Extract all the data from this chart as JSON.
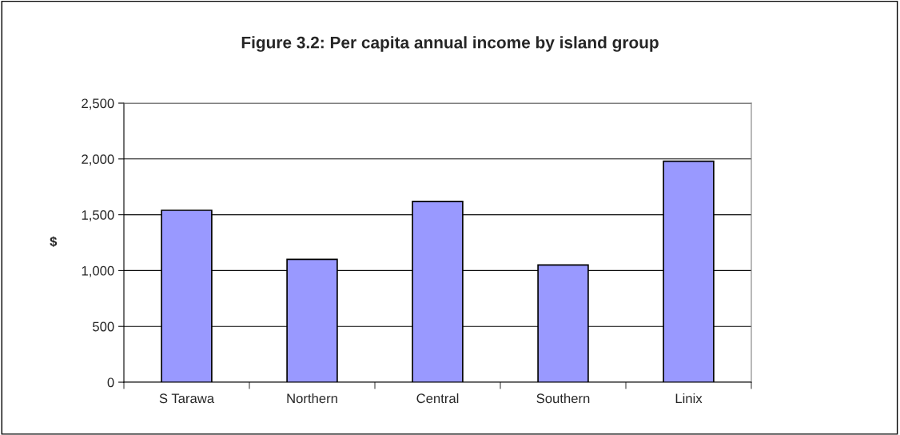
{
  "chart_data": {
    "type": "bar",
    "title": "Figure 3.2: Per capita annual income by island group",
    "ylabel": "$",
    "categories": [
      "S Tarawa",
      "Northern",
      "Central",
      "Southern",
      "Linix"
    ],
    "values": [
      1540,
      1100,
      1620,
      1050,
      1980
    ],
    "color": "#9999ff",
    "ylim": [
      0,
      2500
    ],
    "yticks": [
      {
        "value": 0,
        "label": "0"
      },
      {
        "value": 500,
        "label": "500"
      },
      {
        "value": 1000,
        "label": "1,000"
      },
      {
        "value": 1500,
        "label": "1,500"
      },
      {
        "value": 2000,
        "label": "2,000"
      },
      {
        "value": 2500,
        "label": "2,500"
      }
    ],
    "grid": "y",
    "legend": false
  }
}
